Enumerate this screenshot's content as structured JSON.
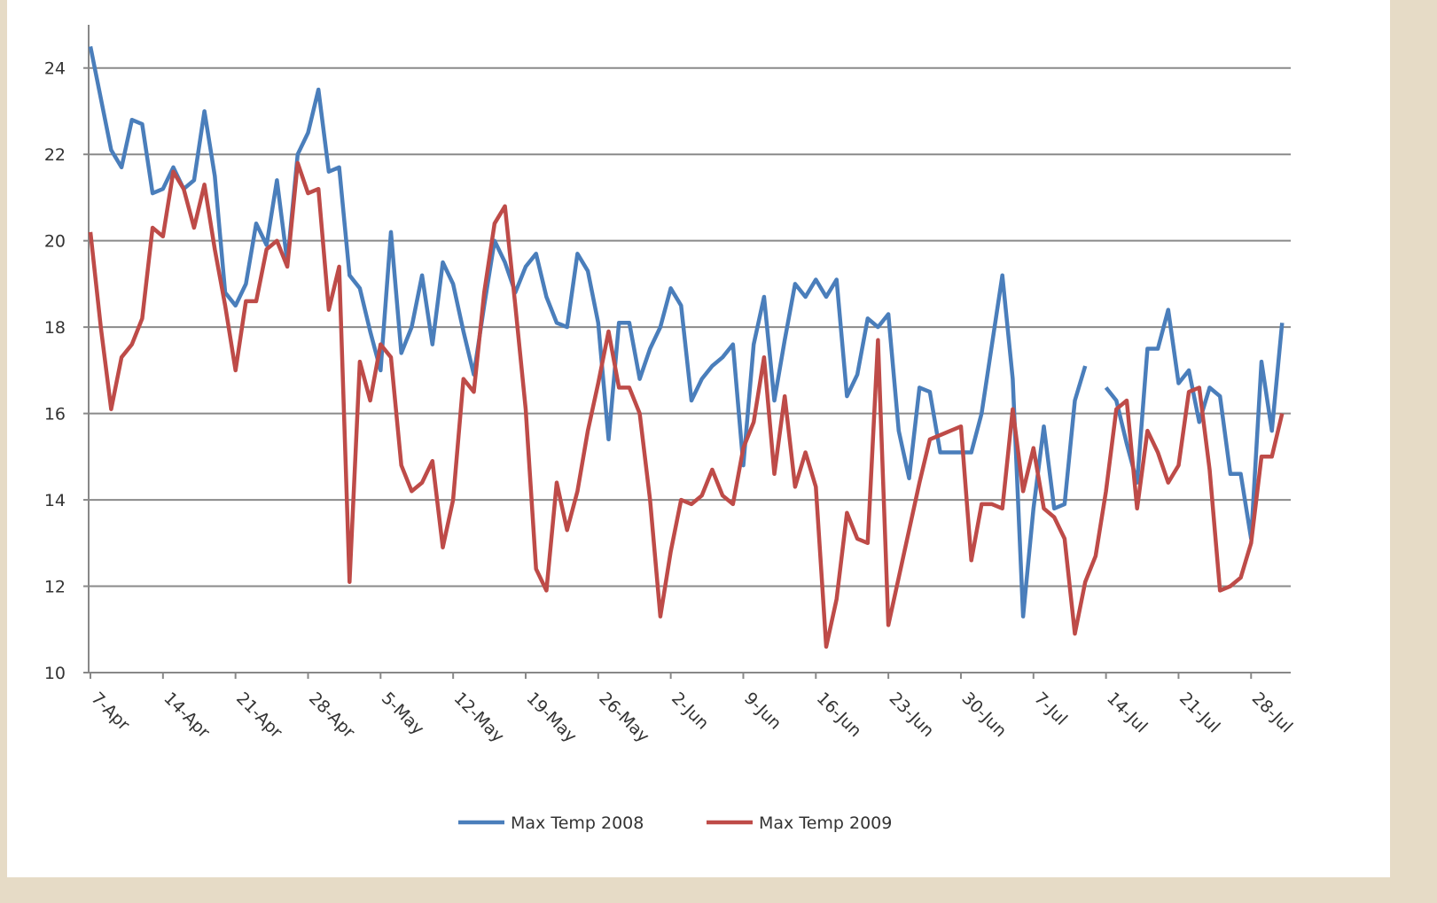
{
  "chart_data": {
    "type": "line",
    "categories": [
      "7-Apr",
      null,
      null,
      null,
      null,
      null,
      null,
      "14-Apr",
      null,
      null,
      null,
      null,
      null,
      null,
      "21-Apr",
      null,
      null,
      null,
      null,
      null,
      null,
      "28-Apr",
      null,
      null,
      null,
      null,
      null,
      null,
      "5-May",
      null,
      null,
      null,
      null,
      null,
      null,
      "12-May",
      null,
      null,
      null,
      null,
      null,
      null,
      "19-May",
      null,
      null,
      null,
      null,
      null,
      null,
      "26-May",
      null,
      null,
      null,
      null,
      null,
      null,
      "2-Jun",
      null,
      null,
      null,
      null,
      null,
      null,
      "9-Jun",
      null,
      null,
      null,
      null,
      null,
      null,
      "16-Jun",
      null,
      null,
      null,
      null,
      null,
      null,
      "23-Jun",
      null,
      null,
      null,
      null,
      null,
      null,
      "30-Jun",
      null,
      null,
      null,
      null,
      null,
      null,
      "7-Jul",
      null,
      null,
      null,
      null,
      null,
      null,
      "14-Jul",
      null,
      null,
      null,
      null,
      null,
      null,
      "21-Jul",
      null,
      null,
      null,
      null,
      null,
      null,
      "28-Jul",
      null,
      null,
      null
    ],
    "series": [
      {
        "name": "Max Temp 2008",
        "color": "#4a7ebb",
        "values": [
          24.5,
          23.3,
          22.1,
          21.7,
          22.8,
          22.7,
          21.1,
          21.2,
          21.7,
          21.2,
          21.4,
          23.0,
          21.5,
          18.8,
          18.5,
          19.0,
          20.4,
          19.9,
          21.4,
          19.5,
          22.0,
          22.5,
          23.5,
          21.6,
          21.7,
          19.2,
          18.9,
          17.9,
          17.0,
          20.2,
          17.4,
          18.0,
          19.2,
          17.6,
          19.5,
          19.0,
          17.9,
          16.9,
          18.5,
          20.0,
          19.5,
          18.8,
          19.4,
          19.7,
          18.7,
          18.1,
          18.0,
          19.7,
          19.3,
          18.1,
          15.4,
          18.1,
          18.1,
          16.8,
          17.5,
          18.0,
          18.9,
          18.5,
          16.3,
          16.8,
          17.1,
          17.3,
          17.6,
          14.8,
          17.6,
          18.7,
          16.3,
          17.7,
          19.0,
          18.7,
          19.1,
          18.7,
          19.1,
          16.4,
          16.9,
          18.2,
          18.0,
          18.3,
          15.6,
          14.5,
          16.6,
          16.5,
          15.1,
          15.1,
          15.1,
          15.1,
          16.0,
          17.6,
          19.2,
          16.8,
          11.3,
          13.8,
          15.7,
          13.8,
          13.9,
          16.3,
          17.1,
          null,
          16.6,
          16.3,
          15.3,
          14.4,
          17.5,
          17.5,
          18.4,
          16.7,
          17.0,
          15.8,
          16.6,
          16.4,
          14.6,
          14.6,
          13.1,
          17.2,
          15.6,
          18.1
        ]
      },
      {
        "name": "Max Temp 2009",
        "color": "#be4b48",
        "values": [
          20.2,
          18.0,
          16.1,
          17.3,
          17.6,
          18.2,
          20.3,
          20.1,
          21.6,
          21.2,
          20.3,
          21.3,
          19.8,
          18.5,
          17.0,
          18.6,
          18.6,
          19.8,
          20.0,
          19.4,
          21.8,
          21.1,
          21.2,
          18.4,
          19.4,
          12.1,
          17.2,
          16.3,
          17.6,
          17.3,
          14.8,
          14.2,
          14.4,
          14.9,
          12.9,
          14.0,
          16.8,
          16.5,
          18.8,
          20.4,
          20.8,
          18.5,
          16.1,
          12.4,
          11.9,
          14.4,
          13.3,
          14.2,
          15.6,
          16.7,
          17.9,
          16.6,
          16.6,
          16.0,
          14.0,
          11.3,
          12.8,
          14.0,
          13.9,
          14.1,
          14.7,
          14.1,
          13.9,
          15.2,
          15.8,
          17.3,
          14.6,
          16.4,
          14.3,
          15.1,
          14.3,
          10.6,
          11.7,
          13.7,
          13.1,
          13.0,
          17.7,
          11.1,
          12.2,
          13.3,
          14.4,
          15.4,
          15.5,
          15.6,
          15.7,
          12.6,
          13.9,
          13.9,
          13.8,
          16.1,
          14.2,
          15.2,
          13.8,
          13.6,
          13.1,
          10.9,
          12.1,
          12.7,
          14.2,
          16.1,
          16.3,
          13.8,
          15.6,
          15.1,
          14.4,
          14.8,
          16.5,
          16.6,
          14.7,
          11.9,
          12.0,
          12.2,
          13.0,
          15.0,
          15.0,
          16.0
        ]
      }
    ],
    "ylim": [
      10,
      25
    ],
    "yticks": [
      10,
      12,
      14,
      16,
      18,
      20,
      22,
      24
    ],
    "grid": true,
    "legend": "bottom"
  }
}
